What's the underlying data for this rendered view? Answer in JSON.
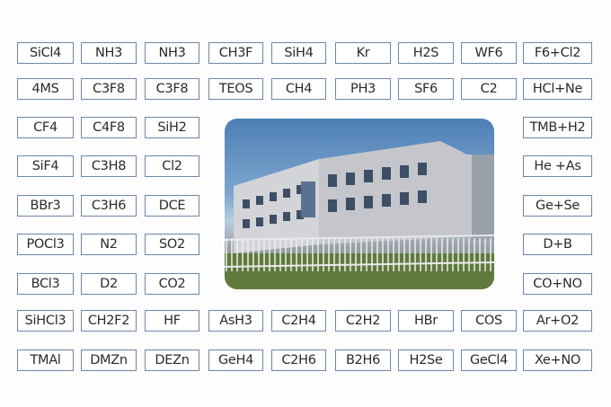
{
  "rows": [
    [
      "SiCl4",
      "NH3",
      "NH3",
      "CH3F",
      "SiH4",
      "Kr",
      "H2S",
      "WF6",
      "F6+Cl2"
    ],
    [
      "4MS",
      "C3F8",
      "C3F8",
      "TEOS",
      "CH4",
      "PH3",
      "SF6",
      "C2",
      "HCl+Ne"
    ],
    [
      "CF4",
      "C4F8",
      "SiH2",
      "TMB+H2"
    ],
    [
      "SiF4",
      "C3H8",
      "Cl2",
      "He +As"
    ],
    [
      "BBr3",
      "C3H6",
      "DCE",
      "Ge+Se"
    ],
    [
      "POCl3",
      "N2",
      "SO2",
      "D+B"
    ],
    [
      "BCl3",
      "D2",
      "CO2",
      "CO+NO"
    ],
    [
      "SiHCl3",
      "CH2F2",
      "HF",
      "AsH3",
      "C2H4",
      "C2H2",
      "HBr",
      "COS",
      "Ar+O2"
    ],
    [
      "TMAl",
      "DMZn",
      "DEZn",
      "GeH4",
      "C2H6",
      "B2H6",
      "H2Se",
      "GeCl4",
      "Xe+NO"
    ]
  ],
  "colors": {
    "border": "#6d86a8",
    "sky": "#4e7fb5",
    "building": "#c9c9cc"
  },
  "photo": {
    "subject": "factory-building-photo"
  }
}
